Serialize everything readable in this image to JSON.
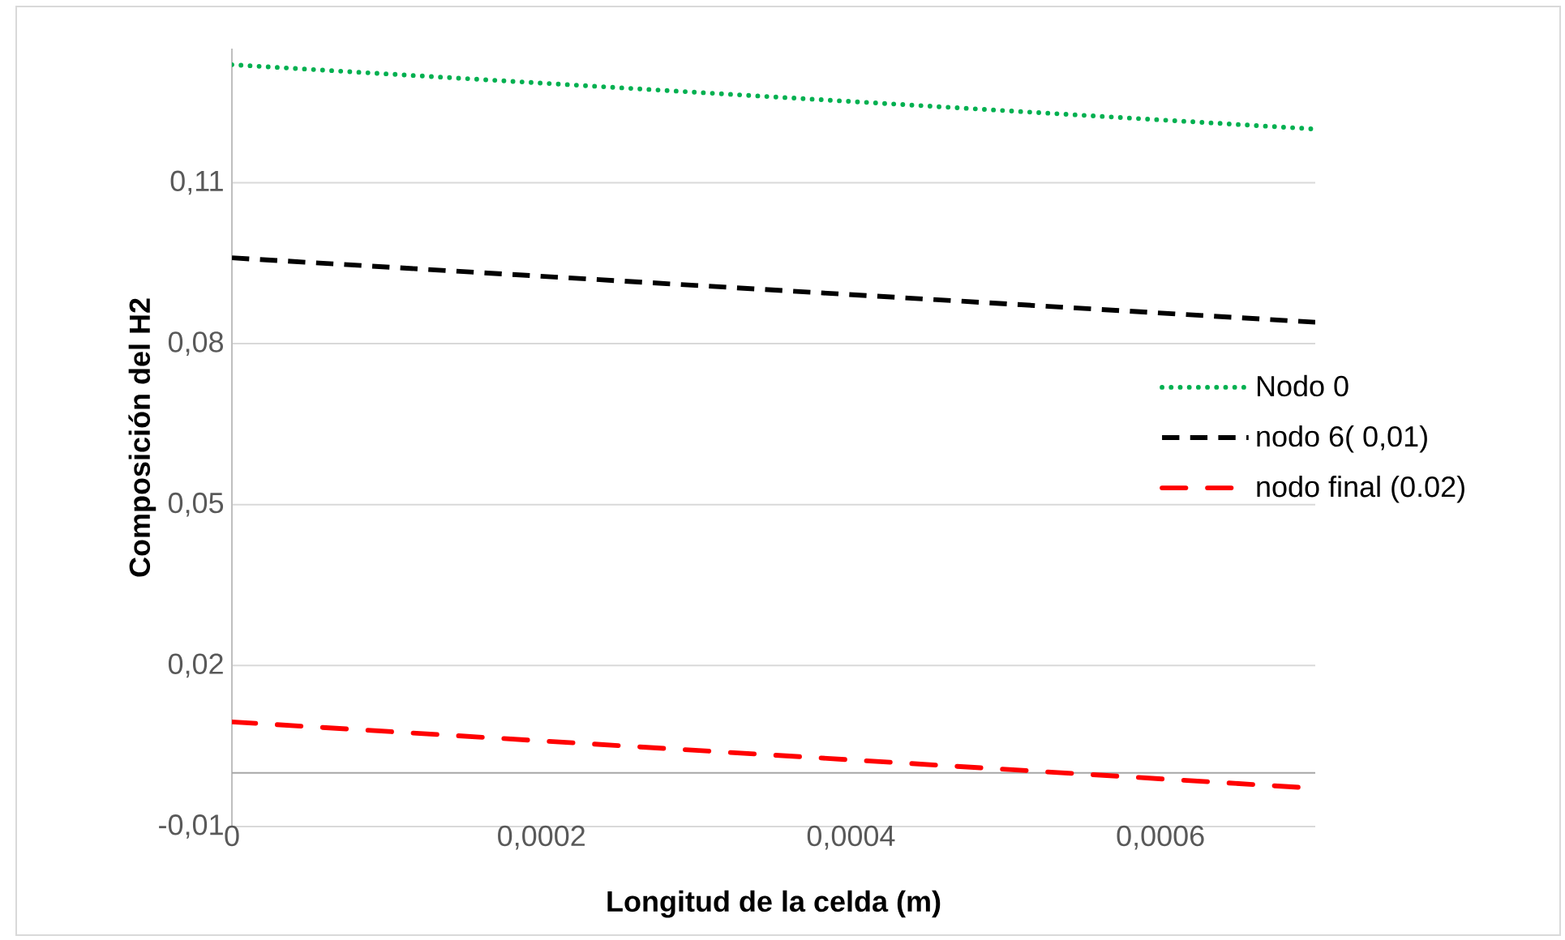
{
  "chart_data": {
    "type": "line",
    "xlabel": "Longitud de la celda (m)",
    "ylabel": "Composición del H2",
    "xlim": [
      0,
      0.0007
    ],
    "ylim": [
      -0.01,
      0.135
    ],
    "xticks": [
      0,
      {
        "value": 0.0002,
        "label": "0,0002"
      },
      {
        "value": 0.0004,
        "label": "0,0004"
      },
      {
        "value": 0.0006,
        "label": "0,0006"
      }
    ],
    "yticks": [
      {
        "value": -0.01,
        "label": "-0,01"
      },
      {
        "value": 0.02,
        "label": "0,02"
      },
      {
        "value": 0.05,
        "label": "0,05"
      },
      {
        "value": 0.08,
        "label": "0,08"
      },
      {
        "value": 0.11,
        "label": "0,11"
      }
    ],
    "grid": "y",
    "legend": "right",
    "marker": "none",
    "ref_lines": [
      {
        "axis": "y",
        "value": 0,
        "color": "#a6a6a6"
      }
    ],
    "series": [
      {
        "name": "Nodo 0",
        "color": "#00b050",
        "line_style": "dotted",
        "x": [
          0,
          0.0007
        ],
        "values": [
          0.132,
          0.12
        ]
      },
      {
        "name": "nodo 6( 0,01)",
        "color": "#000000",
        "line_style": "dashed",
        "x": [
          0,
          0.0007
        ],
        "values": [
          0.096,
          0.084
        ]
      },
      {
        "name": "nodo final (0.02)",
        "color": "#ff0000",
        "line_style": "dashdot",
        "x": [
          0,
          0.00069
        ],
        "values": [
          0.0095,
          -0.0027
        ]
      }
    ]
  }
}
